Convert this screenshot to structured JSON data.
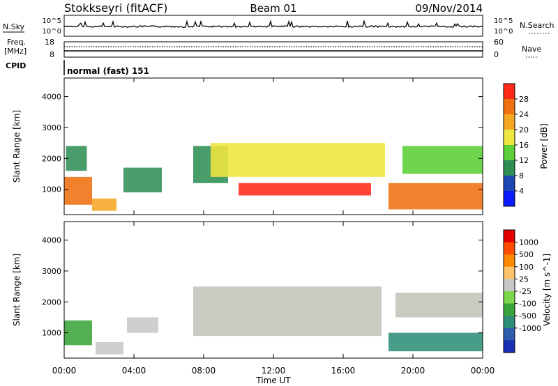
{
  "header": {
    "station": "Stokkseyri (fitACF)",
    "beam": "Beam 01",
    "date": "09/Nov/2014"
  },
  "panels": {
    "nsky_label": "N.Sky",
    "nsearch_label": "N.Search",
    "nsky_ticks": [
      "10^5",
      "10^0"
    ],
    "nsearch_ticks": [
      "10^5",
      "10^0"
    ],
    "freq_label_line1": "Freq.",
    "freq_label_line2": "[MHz]",
    "freq_ticks": [
      "18",
      "8"
    ],
    "nave_label": "Nave",
    "nave_ticks": [
      "60",
      "0"
    ],
    "cpid_label": "CPID",
    "cpid_text": "normal (fast) 151"
  },
  "colors": {
    "power_scale": [
      "#0a1cff",
      "#1f47b3",
      "#2f8f55",
      "#5ccf36",
      "#f0e640",
      "#f5a623",
      "#f07010",
      "#ff2a1a"
    ],
    "velocity_scale": [
      "#e30000",
      "#ff4d00",
      "#ff8a00",
      "#ffc36a",
      "#c8c8c8",
      "#7ed64a",
      "#3aa53a",
      "#2d8f77",
      "#2e5db0",
      "#1a2fb5"
    ],
    "ground_scatter": "#c4c4bc"
  },
  "chart_data": [
    {
      "type": "heatmap",
      "name": "power",
      "ylabel": "Slant Range [km]",
      "xlabel": "Time UT",
      "xticks": [
        "00:00",
        "04:00",
        "08:00",
        "12:00",
        "16:00",
        "20:00",
        "00:00"
      ],
      "xlim": [
        0,
        24
      ],
      "yticks": [
        "1000",
        "2000",
        "3000",
        "4000"
      ],
      "ylim": [
        180,
        4600
      ],
      "colorbar": {
        "label": "Power [dB]",
        "ticks": [
          "4",
          "8",
          "12",
          "16",
          "20",
          "24",
          "28"
        ],
        "range": [
          0,
          32
        ]
      },
      "regions": [
        {
          "t0": 0.0,
          "t1": 1.6,
          "r0": 500,
          "r1": 1400,
          "value": 24
        },
        {
          "t0": 0.1,
          "t1": 1.3,
          "r0": 1600,
          "r1": 2400,
          "value": 10
        },
        {
          "t0": 1.6,
          "t1": 3.0,
          "r0": 300,
          "r1": 700,
          "value": 22
        },
        {
          "t0": 3.4,
          "t1": 5.6,
          "r0": 900,
          "r1": 1700,
          "value": 9
        },
        {
          "t0": 7.4,
          "t1": 9.4,
          "r0": 1200,
          "r1": 2400,
          "value": 10
        },
        {
          "t0": 8.4,
          "t1": 18.4,
          "r0": 1400,
          "r1": 2500,
          "value": 17
        },
        {
          "t0": 10.0,
          "t1": 17.6,
          "r0": 800,
          "r1": 1200,
          "value": 28
        },
        {
          "t0": 18.6,
          "t1": 24.0,
          "r0": 350,
          "r1": 1200,
          "value": 26
        },
        {
          "t0": 19.4,
          "t1": 24.0,
          "r0": 1500,
          "r1": 2400,
          "value": 14
        }
      ]
    },
    {
      "type": "heatmap",
      "name": "velocity",
      "ylabel": "Slant Range [km]",
      "xlabel": "Time UT",
      "xticks": [
        "00:00",
        "04:00",
        "08:00",
        "12:00",
        "16:00",
        "20:00",
        "00:00"
      ],
      "xlim": [
        0,
        24
      ],
      "yticks": [
        "1000",
        "2000",
        "3000",
        "4000"
      ],
      "ylim": [
        180,
        4600
      ],
      "colorbar": {
        "label": "Velocity [m s^-1]",
        "ticks": [
          "1000",
          "500",
          "100",
          "25",
          "-25",
          "-100",
          "-500",
          "-1000"
        ],
        "range": [
          -1000,
          1000
        ]
      },
      "regions": [
        {
          "t0": 0.0,
          "t1": 1.6,
          "r0": 600,
          "r1": 1400,
          "value": -400
        },
        {
          "t0": 1.8,
          "t1": 3.4,
          "r0": 300,
          "r1": 700,
          "value": 150
        },
        {
          "t0": 3.6,
          "t1": 5.4,
          "r0": 1000,
          "r1": 1500,
          "value": 80
        },
        {
          "t0": 7.4,
          "t1": 18.2,
          "r0": 900,
          "r1": 2500,
          "value": 0
        },
        {
          "t0": 18.6,
          "t1": 24.0,
          "r0": 400,
          "r1": 1000,
          "value": -500
        },
        {
          "t0": 19.0,
          "t1": 24.0,
          "r0": 1500,
          "r1": 2300,
          "value": 0
        }
      ]
    }
  ]
}
